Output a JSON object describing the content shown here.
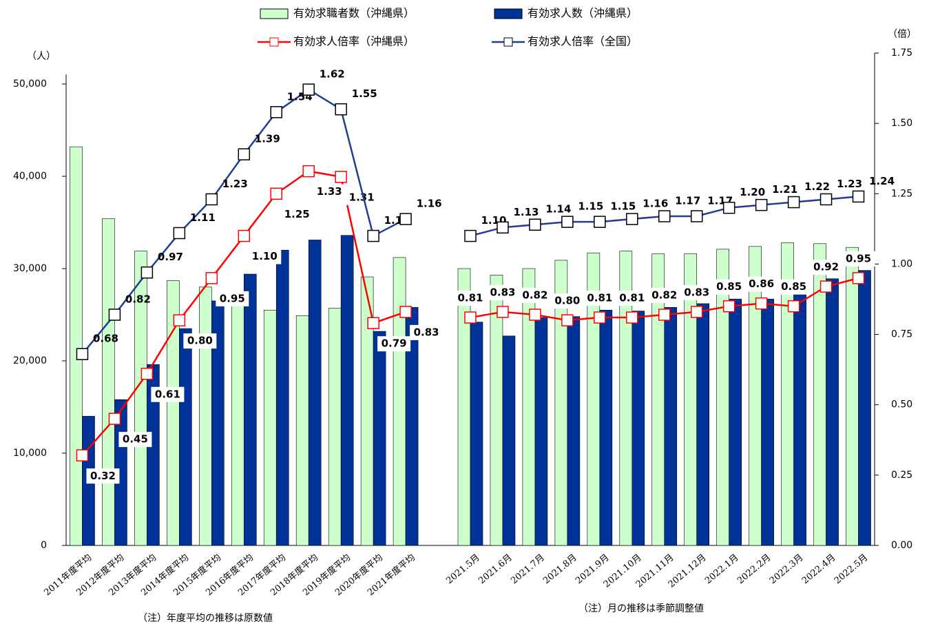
{
  "chart_data": {
    "type": "bar_line",
    "y_unit": "（人）",
    "y2_unit": "（倍）",
    "notes": [
      "（注）年度平均の推移は原数値",
      "（注）月の推移は季節調整値"
    ],
    "categories": [
      "2011年度平均",
      "2012年度平均",
      "2013年度平均",
      "2014年度平均",
      "2015年度平均",
      "2016年度平均",
      "2017年度平均",
      "2018年度平均",
      "2019年度平均",
      "2020年度平均",
      "2021年度平均",
      null,
      "2021.5月",
      "2021.6月",
      "2021.7月",
      "2021.8月",
      "2021.9月",
      "2021.10月",
      "2021.11月",
      "2021.12月",
      "2022.1月",
      "2022.2月",
      "2022.3月",
      "2022.4月",
      "2022.5月"
    ],
    "ylim": [
      0,
      50000
    ],
    "yticks": [
      0,
      {
        "value": 10000,
        "label": "10,000"
      },
      {
        "value": 20000,
        "label": "20,000"
      },
      {
        "value": 30000,
        "label": "30,000"
      },
      {
        "value": 40000,
        "label": "40,000"
      },
      {
        "value": 50000,
        "label": "50,000"
      }
    ],
    "y2lim": [
      0,
      1.75
    ],
    "y2ticks": [
      {
        "value": 0,
        "label": "0.00"
      },
      {
        "value": 0.25,
        "label": "0.25"
      },
      {
        "value": 0.5,
        "label": "0.50"
      },
      {
        "value": 0.75,
        "label": "0.75"
      },
      {
        "value": 1,
        "label": "1.00"
      },
      {
        "value": 1.25,
        "label": "1.25"
      },
      {
        "value": 1.5,
        "label": "1.50"
      },
      {
        "value": 1.75,
        "label": "1.75"
      }
    ],
    "series": [
      {
        "name": "有効求職者数（沖縄県）",
        "kind": "bar",
        "color": "#ccffcc",
        "values": [
          43200,
          35400,
          31900,
          28700,
          28000,
          27000,
          25500,
          24900,
          25700,
          29100,
          31200,
          null,
          30000,
          29300,
          30000,
          30900,
          31700,
          31900,
          31600,
          31600,
          32100,
          32400,
          32800,
          32700,
          32300
        ]
      },
      {
        "name": "有効求人数（沖縄県）",
        "kind": "bar",
        "color": "#003399",
        "values": [
          14000,
          15800,
          19600,
          23500,
          26500,
          29400,
          32000,
          33100,
          33600,
          23200,
          25800,
          null,
          24200,
          22700,
          24700,
          24800,
          25500,
          25400,
          25800,
          26200,
          26700,
          26700,
          27900,
          28900,
          29800
        ]
      },
      {
        "name": "有効求人倍率（沖縄県）",
        "kind": "line",
        "axis": "y2",
        "color": "#ff0000",
        "values": [
          0.32,
          0.45,
          0.61,
          0.8,
          0.95,
          1.1,
          1.25,
          1.33,
          1.31,
          0.79,
          0.83,
          null,
          0.81,
          0.83,
          0.82,
          0.8,
          0.81,
          0.81,
          0.82,
          0.83,
          0.85,
          0.86,
          0.85,
          0.92,
          0.95
        ],
        "value_labels": [
          "0.32",
          "0.45",
          "0.61",
          "0.80",
          "0.95",
          "1.10",
          "1.25",
          "1.33",
          "1.31",
          "0.79",
          "0.83",
          null,
          "0.81",
          "0.83",
          "0.82",
          "0.80",
          "0.81",
          "0.81",
          "0.82",
          "0.83",
          "0.85",
          "0.86",
          "0.85",
          "0.92",
          "0.95"
        ]
      },
      {
        "name": "有効求人倍率（全国）",
        "kind": "line",
        "axis": "y2",
        "color": "#1f3c99",
        "values": [
          0.68,
          0.82,
          0.97,
          1.11,
          1.23,
          1.39,
          1.54,
          1.62,
          1.55,
          1.1,
          1.16,
          null,
          1.1,
          1.13,
          1.14,
          1.15,
          1.15,
          1.16,
          1.17,
          1.17,
          1.2,
          1.21,
          1.22,
          1.23,
          1.24
        ],
        "value_labels": [
          "0.68",
          "0.82",
          "0.97",
          "1.11",
          "1.23",
          "1.39",
          "1.54",
          "1.62",
          "1.55",
          "1.10",
          "1.16",
          null,
          "1.10",
          "1.13",
          "1.14",
          "1.15",
          "1.15",
          "1.16",
          "1.17",
          "1.17",
          "1.20",
          "1.21",
          "1.22",
          "1.23",
          "1.24"
        ]
      }
    ]
  }
}
